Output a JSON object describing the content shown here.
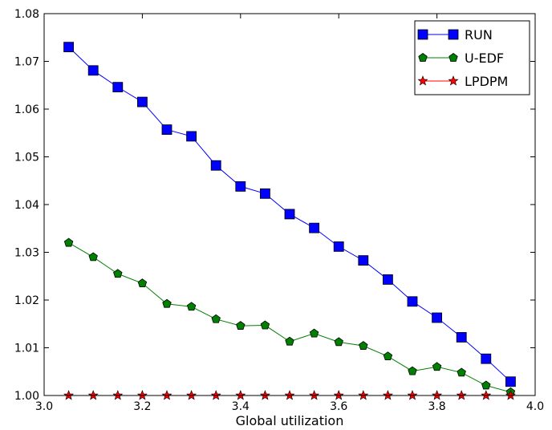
{
  "chart_data": {
    "type": "line",
    "title": "",
    "xlabel": "Global utilization",
    "ylabel": "",
    "xlim": [
      3.0,
      4.0
    ],
    "ylim": [
      1.0,
      1.08
    ],
    "x_ticks": [
      "3.0",
      "3.2",
      "3.4",
      "3.6",
      "3.8",
      "4.0"
    ],
    "y_ticks": [
      "1.00",
      "1.01",
      "1.02",
      "1.03",
      "1.04",
      "1.05",
      "1.06",
      "1.07",
      "1.08"
    ],
    "grid": false,
    "legend_position": "top-right",
    "x": [
      3.05,
      3.1,
      3.15,
      3.2,
      3.25,
      3.3,
      3.35,
      3.4,
      3.45,
      3.5,
      3.55,
      3.6,
      3.65,
      3.7,
      3.75,
      3.8,
      3.85,
      3.9,
      3.95
    ],
    "series": [
      {
        "name": "RUN",
        "color": "#0000ff",
        "marker": "square",
        "values": [
          1.073,
          1.0681,
          1.0646,
          1.0615,
          1.0557,
          1.0543,
          1.0482,
          1.0438,
          1.0423,
          1.038,
          1.0351,
          1.0312,
          1.0283,
          1.0243,
          1.0197,
          1.0163,
          1.0122,
          1.0077,
          1.0029
        ]
      },
      {
        "name": "U-EDF",
        "color": "#008000",
        "marker": "pentagon",
        "values": [
          1.032,
          1.029,
          1.0255,
          1.0235,
          1.0192,
          1.0186,
          1.016,
          1.0146,
          1.0147,
          1.0113,
          1.013,
          1.0112,
          1.0104,
          1.0082,
          1.0051,
          1.006,
          1.0048,
          1.0021,
          1.0007
        ]
      },
      {
        "name": "LPDPM",
        "color": "#ff0000",
        "marker": "star",
        "values": [
          1.0,
          1.0,
          1.0,
          1.0,
          1.0,
          1.0,
          1.0,
          1.0,
          1.0,
          1.0,
          1.0,
          1.0,
          1.0,
          1.0,
          1.0,
          1.0,
          1.0,
          1.0,
          1.0
        ]
      }
    ]
  }
}
